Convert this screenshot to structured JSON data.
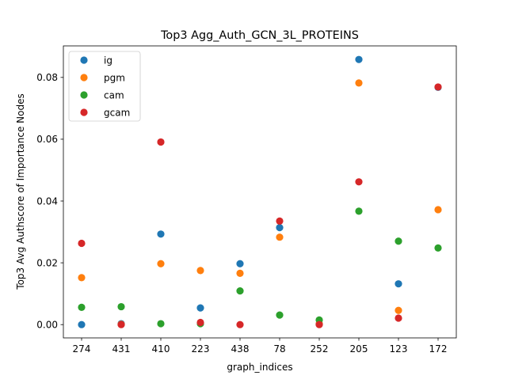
{
  "chart_data": {
    "type": "scatter",
    "title": "Top3 Agg_Auth_GCN_3L_PROTEINS",
    "xlabel": "graph_indices",
    "ylabel": "Top3 Avg Authscore of Importance Nodes",
    "categories": [
      "274",
      "431",
      "410",
      "223",
      "438",
      "78",
      "252",
      "205",
      "123",
      "172"
    ],
    "ylim": [
      -0.0043,
      0.0902
    ],
    "yticks": [
      0.0,
      0.02,
      0.04,
      0.06,
      0.08
    ],
    "ytick_labels": [
      "0.00",
      "0.02",
      "0.04",
      "0.06",
      "0.08"
    ],
    "grid": false,
    "legend_position": "top-left",
    "series": [
      {
        "name": "ig",
        "color": "#1f77b4",
        "values": [
          0.0,
          0.0003,
          0.0293,
          0.0054,
          0.0197,
          0.0314,
          0.0002,
          0.0858,
          0.0132,
          0.0768
        ]
      },
      {
        "name": "pgm",
        "color": "#ff7f0e",
        "values": [
          0.0152,
          0.0001,
          0.0197,
          0.0175,
          0.0166,
          0.0283,
          0.0003,
          0.0782,
          0.0046,
          0.0372
        ]
      },
      {
        "name": "cam",
        "color": "#2ca02c",
        "values": [
          0.0056,
          0.0058,
          0.0003,
          0.0003,
          0.0109,
          0.0031,
          0.0015,
          0.0367,
          0.027,
          0.0248
        ]
      },
      {
        "name": "gcam",
        "color": "#d62728",
        "values": [
          0.0263,
          0.0,
          0.0591,
          0.0007,
          0.0,
          0.0335,
          0.0,
          0.0462,
          0.0021,
          0.0769
        ]
      }
    ]
  }
}
